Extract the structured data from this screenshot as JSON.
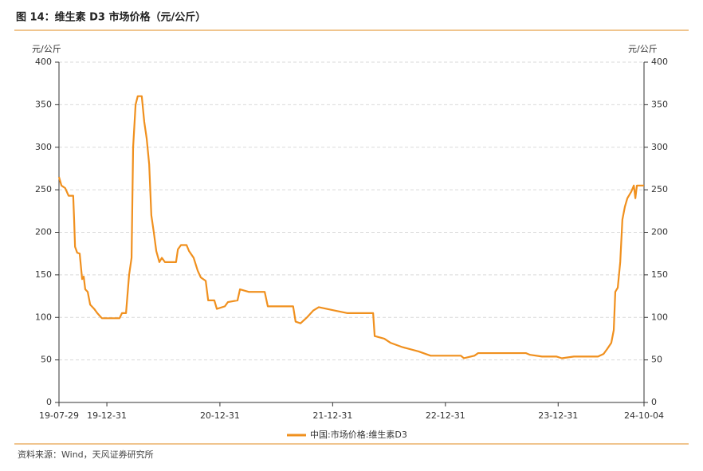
{
  "header": {
    "title": "图 14：维生素 D3 市场价格（元/公斤）"
  },
  "footer": {
    "source": "资料来源：Wind，天风证券研究所"
  },
  "chart_data": {
    "type": "line",
    "y_label": "元/公斤",
    "xlim": [
      "2019-07-29",
      "2024-10-04"
    ],
    "xticks": [
      {
        "value": "2019-07-29",
        "label": "19-07-29"
      },
      {
        "value": "2019-12-31",
        "label": "19-12-31"
      },
      {
        "value": "2020-12-31",
        "label": "20-12-31"
      },
      {
        "value": "2021-12-31",
        "label": "21-12-31"
      },
      {
        "value": "2022-12-31",
        "label": "22-12-31"
      },
      {
        "value": "2023-12-31",
        "label": "23-12-31"
      },
      {
        "value": "2024-10-04",
        "label": "24-10-04"
      }
    ],
    "ylim": [
      0,
      400
    ],
    "yticks": [
      0,
      50,
      100,
      150,
      200,
      250,
      300,
      350,
      400
    ],
    "grid": true,
    "legend": "bottom",
    "x": [
      "2019-07-29",
      "2019-08-06",
      "2019-08-18",
      "2019-08-29",
      "2019-09-13",
      "2019-09-16",
      "2019-09-19",
      "2019-09-26",
      "2019-10-04",
      "2019-10-12",
      "2019-10-17",
      "2019-10-22",
      "2019-10-30",
      "2019-11-07",
      "2019-11-20",
      "2019-11-30",
      "2019-12-15",
      "2020-02-10",
      "2020-02-18",
      "2020-03-02",
      "2020-03-12",
      "2020-03-20",
      "2020-03-25",
      "2020-04-02",
      "2020-04-09",
      "2020-04-22",
      "2020-04-30",
      "2020-05-08",
      "2020-05-16",
      "2020-05-23",
      "2020-05-31",
      "2020-06-08",
      "2020-06-18",
      "2020-06-26",
      "2020-07-06",
      "2020-08-11",
      "2020-08-17",
      "2020-08-27",
      "2020-09-14",
      "2020-09-22",
      "2020-10-07",
      "2020-10-20",
      "2020-10-30",
      "2020-11-15",
      "2020-11-23",
      "2020-12-13",
      "2020-12-21",
      "2021-01-16",
      "2021-01-26",
      "2021-02-26",
      "2021-03-06",
      "2021-04-03",
      "2021-05-25",
      "2021-06-04",
      "2021-08-25",
      "2021-09-02",
      "2021-09-18",
      "2021-10-09",
      "2021-10-29",
      "2021-11-16",
      "2021-12-12",
      "2022-01-07",
      "2022-02-17",
      "2022-05-11",
      "2022-05-16",
      "2022-06-16",
      "2022-07-07",
      "2022-08-14",
      "2022-10-05",
      "2022-11-13",
      "2023-02-19",
      "2023-03-01",
      "2023-04-04",
      "2023-04-16",
      "2023-09-18",
      "2023-10-01",
      "2023-11-09",
      "2023-12-25",
      "2024-01-12",
      "2024-02-20",
      "2024-05-08",
      "2024-05-26",
      "2024-06-07",
      "2024-06-20",
      "2024-06-28",
      "2024-07-03",
      "2024-07-11",
      "2024-07-19",
      "2024-07-26",
      "2024-08-03",
      "2024-08-11",
      "2024-08-24",
      "2024-09-01",
      "2024-09-06",
      "2024-09-11",
      "2024-10-04"
    ],
    "series": [
      {
        "name": "中国:市场价格:维生素D3",
        "color": "#f0901e",
        "values": [
          265,
          255,
          252,
          243,
          243,
          215,
          183,
          176,
          175,
          145,
          148,
          133,
          130,
          115,
          110,
          105,
          99,
          99,
          105,
          105,
          150,
          170,
          300,
          350,
          360,
          360,
          330,
          310,
          280,
          220,
          200,
          178,
          165,
          170,
          165,
          165,
          180,
          185,
          185,
          178,
          170,
          155,
          147,
          143,
          120,
          120,
          110,
          113,
          118,
          120,
          133,
          130,
          130,
          113,
          113,
          95,
          93,
          100,
          108,
          112,
          110,
          108,
          105,
          105,
          78,
          75,
          70,
          65,
          60,
          55,
          55,
          52,
          55,
          58,
          58,
          56,
          54,
          54,
          52,
          54,
          54,
          57,
          63,
          70,
          85,
          130,
          135,
          165,
          215,
          230,
          240,
          248,
          255,
          240,
          255,
          255
        ]
      }
    ]
  }
}
